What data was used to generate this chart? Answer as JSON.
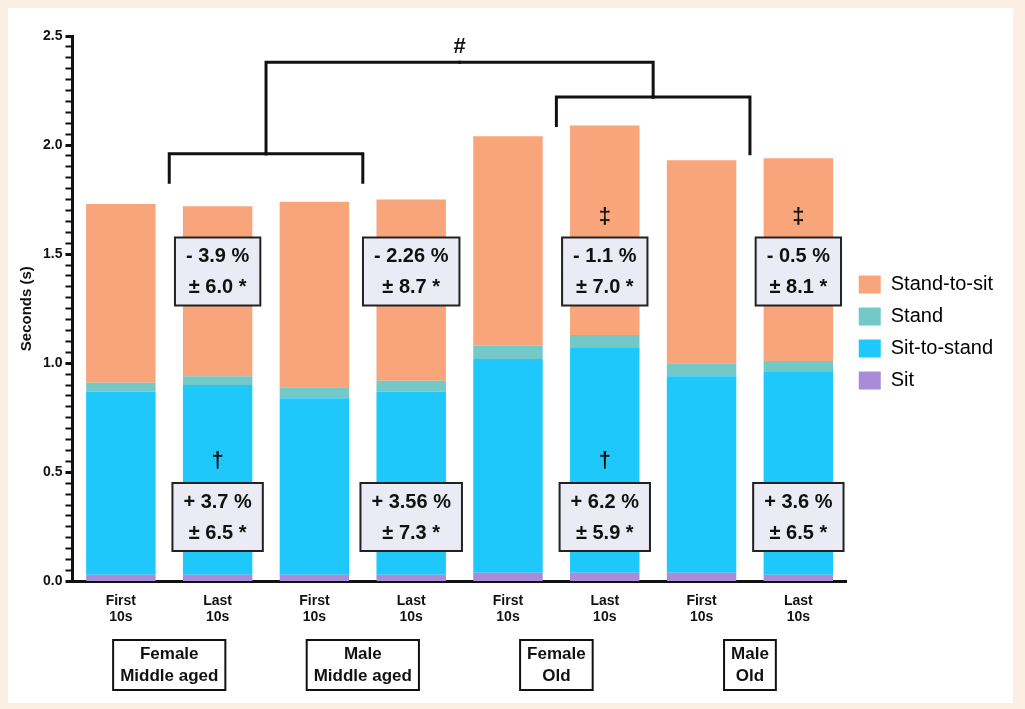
{
  "chart_data": {
    "type": "bar",
    "stacked": true,
    "ylabel": "Seconds (s)",
    "categories": [
      "First 10s",
      "Last 10s",
      "First 10s",
      "Last 10s",
      "First 10s",
      "Last 10s",
      "First 10s",
      "Last 10s"
    ],
    "series": [
      {
        "name": "Sit",
        "color": "#a98bd8",
        "values": [
          0.03,
          0.03,
          0.03,
          0.03,
          0.04,
          0.04,
          0.04,
          0.03
        ]
      },
      {
        "name": "Sit-to-stand",
        "color": "#1ec8fb",
        "values": [
          0.84,
          0.87,
          0.81,
          0.84,
          0.98,
          1.03,
          0.9,
          0.93
        ]
      },
      {
        "name": "Stand",
        "color": "#73c8c8",
        "values": [
          0.04,
          0.04,
          0.05,
          0.05,
          0.06,
          0.06,
          0.06,
          0.05
        ]
      },
      {
        "name": "Stand-to-sit",
        "color": "#f8a57c",
        "values": [
          0.82,
          0.78,
          0.85,
          0.83,
          0.96,
          0.96,
          0.93,
          0.93
        ]
      }
    ],
    "ylim": [
      0,
      2.5
    ],
    "yticks": [
      {
        "value": 0,
        "label": "0.0"
      },
      {
        "value": 0.05,
        "label": null
      },
      {
        "value": 0.1,
        "label": null
      },
      {
        "value": 0.15,
        "label": null
      },
      {
        "value": 0.2,
        "label": null
      },
      {
        "value": 0.25,
        "label": null
      },
      {
        "value": 0.3,
        "label": null
      },
      {
        "value": 0.35,
        "label": null
      },
      {
        "value": 0.4,
        "label": null
      },
      {
        "value": 0.45,
        "label": null
      },
      {
        "value": 0.5,
        "label": "0.5"
      },
      {
        "value": 0.55,
        "label": null
      },
      {
        "value": 0.6,
        "label": null
      },
      {
        "value": 0.65,
        "label": null
      },
      {
        "value": 0.7,
        "label": null
      },
      {
        "value": 0.75,
        "label": null
      },
      {
        "value": 0.8,
        "label": null
      },
      {
        "value": 0.85,
        "label": null
      },
      {
        "value": 0.9,
        "label": null
      },
      {
        "value": 0.95,
        "label": null
      },
      {
        "value": 1,
        "label": "1.0"
      },
      {
        "value": 1.05,
        "label": null
      },
      {
        "value": 1.1,
        "label": null
      },
      {
        "value": 1.15,
        "label": null
      },
      {
        "value": 1.2,
        "label": null
      },
      {
        "value": 1.25,
        "label": null
      },
      {
        "value": 1.3,
        "label": null
      },
      {
        "value": 1.35,
        "label": null
      },
      {
        "value": 1.4,
        "label": null
      },
      {
        "value": 1.45,
        "label": null
      },
      {
        "value": 1.5,
        "label": "1.5"
      },
      {
        "value": 1.55,
        "label": null
      },
      {
        "value": 1.6,
        "label": null
      },
      {
        "value": 1.65,
        "label": null
      },
      {
        "value": 1.7,
        "label": null
      },
      {
        "value": 1.75,
        "label": null
      },
      {
        "value": 1.8,
        "label": null
      },
      {
        "value": 1.85,
        "label": null
      },
      {
        "value": 1.9,
        "label": null
      },
      {
        "value": 1.95,
        "label": null
      },
      {
        "value": 2,
        "label": "2.0"
      },
      {
        "value": 2.05,
        "label": null
      },
      {
        "value": 2.1,
        "label": null
      },
      {
        "value": 2.15,
        "label": null
      },
      {
        "value": 2.2,
        "label": null
      },
      {
        "value": 2.25,
        "label": null
      },
      {
        "value": 2.3,
        "label": null
      },
      {
        "value": 2.35,
        "label": null
      },
      {
        "value": 2.4,
        "label": null
      },
      {
        "value": 2.45,
        "label": null
      },
      {
        "value": 2.5,
        "label": "2.5"
      }
    ],
    "grid": false,
    "legend": "right",
    "annotations": [
      "Female\nMiddle aged",
      "Male\nMiddle aged",
      "Female\nOld",
      "Male\nOld",
      "- 3.9 %\n± 6.0 *",
      "+ 3.7 %\n± 6.5 *",
      "- 2.26 %\n± 8.7 *",
      "+ 3.56 %\n± 7.3 *",
      "- 1.1 %\n± 7.0 *",
      "+ 6.2 %\n± 5.9 *",
      "- 0.5 %\n± 8.1 *",
      "+ 3.6 %\n± 6.5 *",
      "#",
      "†",
      "†",
      "‡",
      "‡"
    ]
  }
}
